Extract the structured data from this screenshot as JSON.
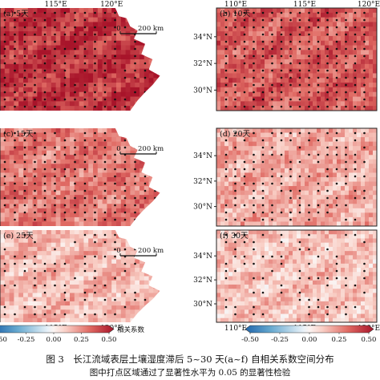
{
  "panels": [
    {
      "id": "a",
      "label": "(a) 5天",
      "level": 0.42,
      "dot_density": 0.85,
      "show_x_top": true,
      "show_x_bottom": false,
      "show_y": false,
      "scale_bar": true
    },
    {
      "id": "b",
      "label": "(b) 10天",
      "level": 0.33,
      "dot_density": 0.9,
      "show_x_top": true,
      "show_x_bottom": false,
      "show_y": true,
      "scale_bar": false
    },
    {
      "id": "c",
      "label": "(c) 15天",
      "level": 0.27,
      "dot_density": 0.85,
      "show_x_top": false,
      "show_x_bottom": false,
      "show_y": false,
      "scale_bar": true
    },
    {
      "id": "d",
      "label": "(d) 20天",
      "level": 0.17,
      "dot_density": 0.65,
      "show_x_top": false,
      "show_x_bottom": false,
      "show_y": true,
      "scale_bar": false
    },
    {
      "id": "e",
      "label": "(e) 25天",
      "level": 0.14,
      "dot_density": 0.5,
      "show_x_top": false,
      "show_x_bottom": true,
      "show_y": false,
      "scale_bar": true
    },
    {
      "id": "f",
      "label": "(f) 30天",
      "level": 0.12,
      "dot_density": 0.45,
      "show_x_top": false,
      "show_x_bottom": true,
      "show_y": true,
      "scale_bar": false
    }
  ],
  "lon_ticks": [
    "115°E",
    "120°E"
  ],
  "lon_ticks_right": [
    "110°E",
    "115°E",
    "120°E"
  ],
  "lat_ticks": [
    "34°N",
    "32°N",
    "30°N"
  ],
  "scale_bar": {
    "zero": "0",
    "label": "200 km"
  },
  "colorbar": {
    "ticks_left": [
      "-0.50",
      "-0.25",
      "0.00",
      "0.25",
      "0.50"
    ],
    "ticks_right": [
      "-0.50",
      "-0.25",
      "0.00",
      "0.25",
      "0.50"
    ],
    "title": "相关系数",
    "range": [
      -0.5,
      0.5
    ],
    "colors": [
      "#2166ac",
      "#67a9cf",
      "#d1e5f0",
      "#f7f7f7",
      "#fddbc7",
      "#ef8a62",
      "#b2182b"
    ]
  },
  "caption": {
    "title": "图 3　长江流域表层土壤湿度滞后 5~30 天(a~f) 自相关系数空间分布",
    "note": "图中打点区域通过了显著性水平为 0.05 的显著性检验"
  }
}
